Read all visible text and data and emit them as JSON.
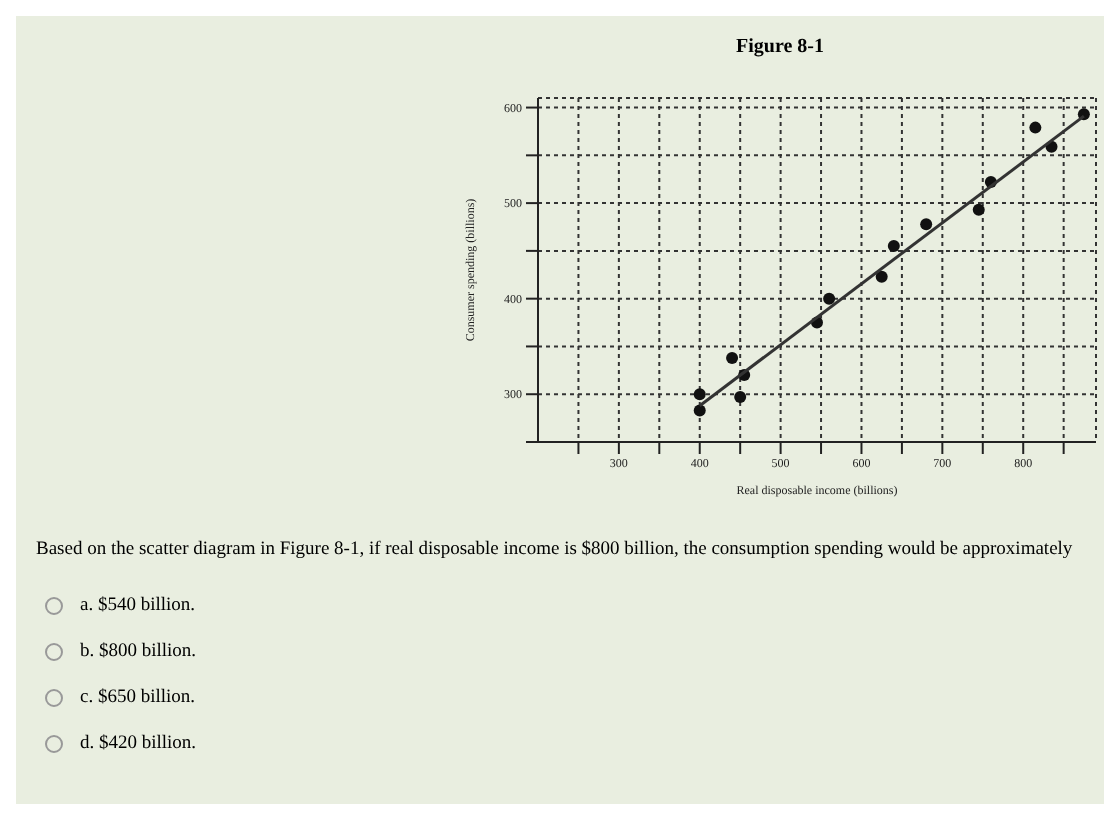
{
  "chart_data": {
    "type": "scatter",
    "title": "Figure 8-1",
    "xlabel": "Real disposable income (billions)",
    "ylabel": "Consumer spending (billions)",
    "series": [
      {
        "color": "#111111",
        "x": [
          400,
          400,
          440,
          455,
          450,
          545,
          560,
          625,
          640,
          680,
          745,
          760,
          815,
          835,
          875
        ],
        "values": [
          283,
          300,
          338,
          320,
          297,
          375,
          400,
          423,
          455,
          478,
          493,
          522,
          579,
          559,
          593
        ]
      },
      {
        "type": "line",
        "marker": "none",
        "color": "#333333",
        "x": [
          400,
          875
        ],
        "values": [
          288,
          591
        ]
      }
    ],
    "xlim": [
      200,
      890
    ],
    "ylim": [
      250,
      610
    ],
    "xticks": [
      {
        "value": 250,
        "label": null
      },
      300,
      {
        "value": 350,
        "label": null
      },
      400,
      {
        "value": 450,
        "label": null
      },
      500,
      {
        "value": 550,
        "label": null
      },
      600,
      {
        "value": 650,
        "label": null
      },
      700,
      {
        "value": 750,
        "label": null
      },
      800,
      {
        "value": 850,
        "label": null
      }
    ],
    "yticks": [
      {
        "value": 250,
        "label": null
      },
      300,
      {
        "value": 350,
        "label": null
      },
      400,
      {
        "value": 450,
        "label": null
      },
      500,
      {
        "value": 550,
        "label": null
      },
      600
    ],
    "grid": true,
    "marker": "circle",
    "line_style": "solid",
    "legend": false,
    "annotations": [
      "Based on the scatter diagram in Figure 8-1, if real disposable income is $800 billion, the consumption spending would be approximately",
      "a. $540 billion.",
      "b. $800 billion.",
      "c. $650 billion.",
      "d. $420 billion."
    ]
  }
}
